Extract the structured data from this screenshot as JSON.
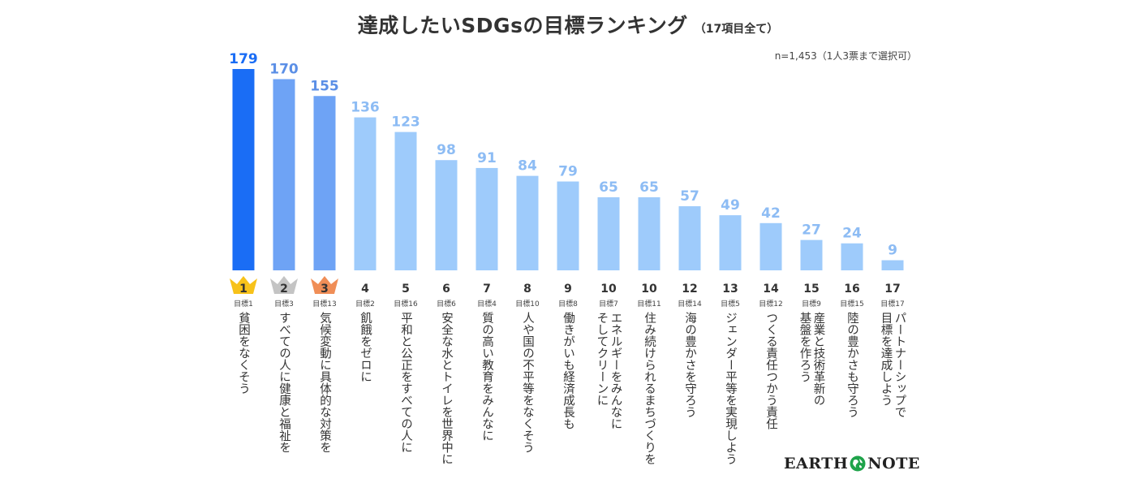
{
  "title": "達成したいSDGsの目標ランキング",
  "subtitle": "（17項目全て）",
  "note": "n=1,453（1人3票まで選択可）",
  "brand": {
    "left": "EARTH",
    "right": "NOTE"
  },
  "colors": {
    "rank1": "#1a6df5",
    "rank2_3": "#6ea3f5",
    "rest": "#9ecbfb",
    "value_text1": "#1a6df5",
    "value_text23": "#5b8fe6",
    "value_textrest": "#8dbcf4",
    "gold": "#f7c21a",
    "silver": "#c4c4c4",
    "bronze": "#f08e57"
  },
  "chart_data": {
    "type": "bar",
    "title": "達成したいSDGsの目標ランキング",
    "categories": [
      "貧困をなくそう",
      "すべての人に健康と福祉を",
      "気候変動に具体的な対策を",
      "飢餓をゼロに",
      "平和と公正をすべての人に",
      "安全な水とトイレを世界中に",
      "質の高い教育をみんなに",
      "人や国の不平等をなくそう",
      "働きがいも経済成長も",
      "エネルギーをみんなにそしてクリーンに",
      "住み続けられるまちづくりを",
      "海の豊かさを守ろう",
      "ジェンダー平等を実現しよう",
      "つくる責任つかう責任",
      "産業と技術革新の基盤を作ろう",
      "陸の豊かさも守ろう",
      "パートナーシップで目標を達成しよう"
    ],
    "label_lines": [
      [
        "貧困をなくそう"
      ],
      [
        "すべての人に健康と福祉を"
      ],
      [
        "気候変動に具体的な対策を"
      ],
      [
        "飢餓をゼロに"
      ],
      [
        "平和と公正をすべての人に"
      ],
      [
        "安全な水とトイレを世界中に"
      ],
      [
        "質の高い教育をみんなに"
      ],
      [
        "人や国の不平等をなくそう"
      ],
      [
        "働きがいも経済成長も"
      ],
      [
        "エネルギーをみんなに",
        "そしてクリーンに"
      ],
      [
        "住み続けられるまちづくりを"
      ],
      [
        "海の豊かさを守ろう"
      ],
      [
        "ジェンダー平等を実現しよう"
      ],
      [
        "つくる責任つかう責任"
      ],
      [
        "産業と技術革新の",
        "基盤を作ろう"
      ],
      [
        "陸の豊かさも守ろう"
      ],
      [
        "パートナーシップで",
        "目標を達成しよう"
      ]
    ],
    "ranks": [
      "1",
      "2",
      "3",
      "4",
      "5",
      "6",
      "7",
      "8",
      "9",
      "10",
      "10",
      "12",
      "13",
      "14",
      "15",
      "16",
      "17"
    ],
    "goals": [
      "目標1",
      "目標3",
      "目標13",
      "目標2",
      "目標16",
      "目標6",
      "目標4",
      "目標10",
      "目標8",
      "目標7",
      "目標11",
      "目標14",
      "目標5",
      "目標12",
      "目標9",
      "目標15",
      "目標17"
    ],
    "values": [
      179,
      170,
      155,
      136,
      123,
      98,
      91,
      84,
      79,
      65,
      65,
      57,
      49,
      42,
      27,
      24,
      9
    ],
    "ylim": [
      0,
      179
    ],
    "grid": false,
    "legend": "none"
  }
}
